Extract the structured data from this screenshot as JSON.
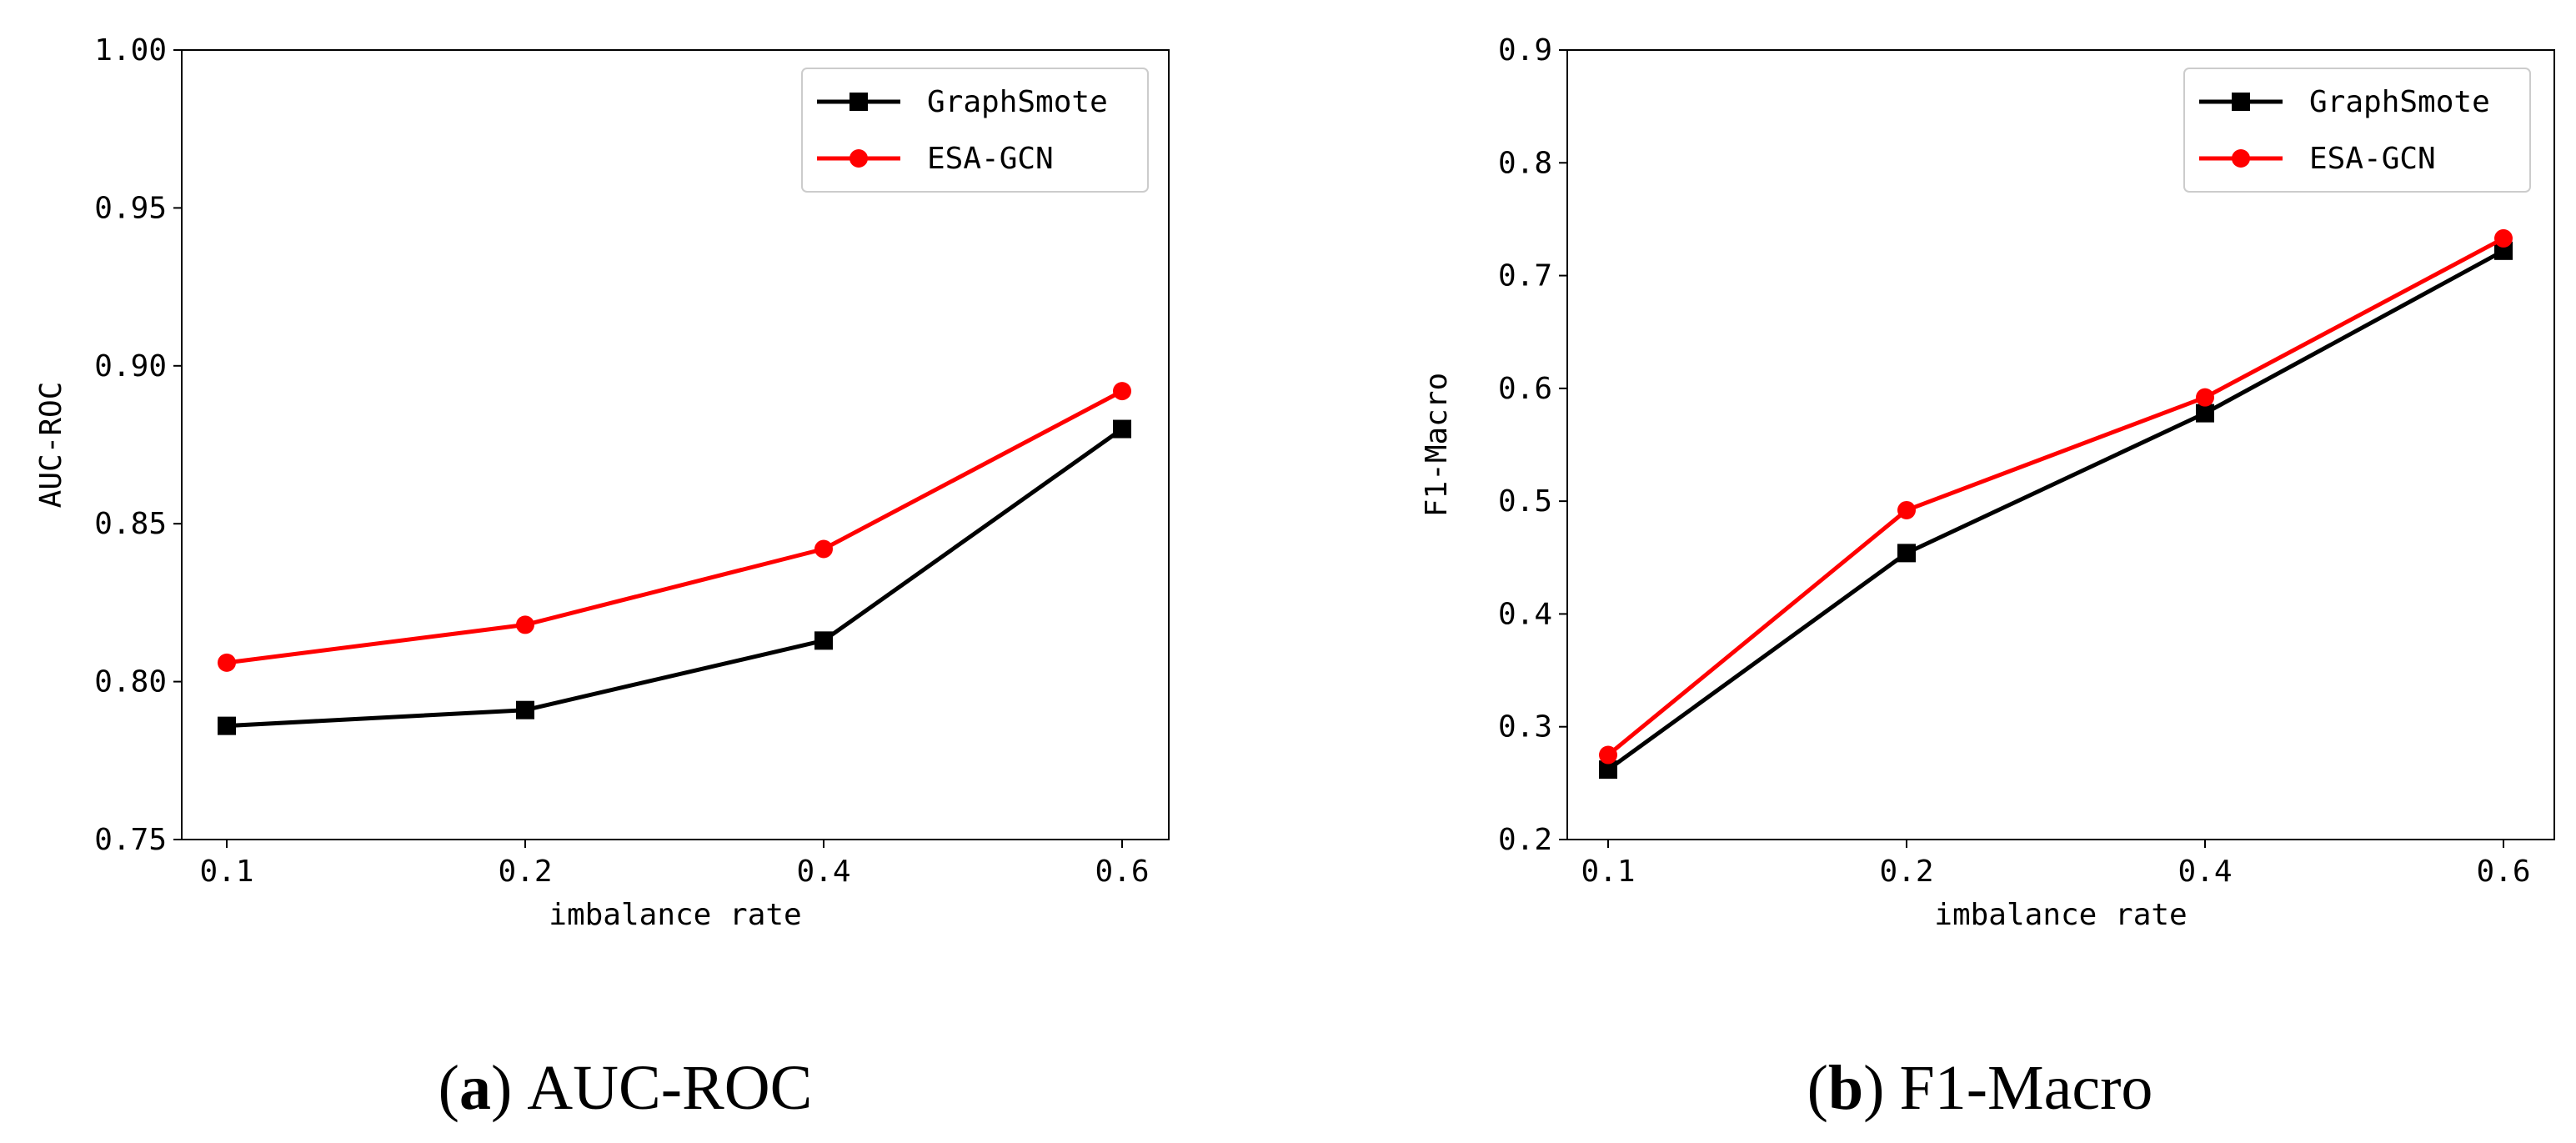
{
  "chart_data": [
    {
      "type": "line",
      "caption_letter": "a",
      "caption_text": "AUC-ROC",
      "paren_open": "(",
      "paren_close": ")",
      "xlabel": "imbalance rate",
      "ylabel": "AUC-ROC",
      "categories": [
        "0.1",
        "0.2",
        "0.4",
        "0.6"
      ],
      "yticks": [
        "0.75",
        "0.80",
        "0.85",
        "0.90",
        "0.95",
        "1.00"
      ],
      "ylim": [
        0.75,
        1.0
      ],
      "series": [
        {
          "name": "GraphSmote",
          "color": "#000000",
          "marker": "square",
          "values": [
            0.786,
            0.791,
            0.813,
            0.88
          ]
        },
        {
          "name": "ESA-GCN",
          "color": "#ff0000",
          "marker": "circle",
          "values": [
            0.806,
            0.818,
            0.842,
            0.892
          ]
        }
      ],
      "legend": "top-right"
    },
    {
      "type": "line",
      "caption_letter": "b",
      "caption_text": "F1-Macro",
      "paren_open": "(",
      "paren_close": ")",
      "xlabel": "imbalance rate",
      "ylabel": "F1-Macro",
      "categories": [
        "0.1",
        "0.2",
        "0.4",
        "0.6"
      ],
      "yticks": [
        "0.2",
        "0.3",
        "0.4",
        "0.5",
        "0.6",
        "0.7",
        "0.8",
        "0.9"
      ],
      "ylim": [
        0.2,
        0.9
      ],
      "series": [
        {
          "name": "GraphSmote",
          "color": "#000000",
          "marker": "square",
          "values": [
            0.262,
            0.454,
            0.578,
            0.722
          ]
        },
        {
          "name": "ESA-GCN",
          "color": "#ff0000",
          "marker": "circle",
          "values": [
            0.275,
            0.492,
            0.592,
            0.733
          ]
        }
      ],
      "legend": "top-right"
    }
  ]
}
